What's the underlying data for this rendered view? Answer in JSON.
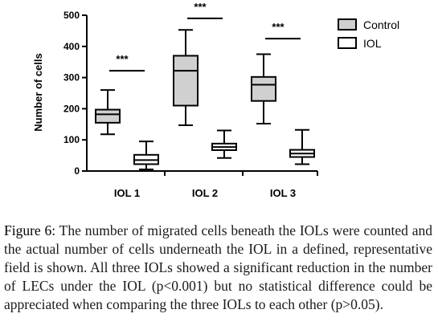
{
  "chart_data": {
    "type": "boxplot",
    "ylabel": "Number of cells",
    "ylim": [
      0,
      500
    ],
    "yticks": [
      0,
      100,
      200,
      300,
      400,
      500
    ],
    "categories": [
      "IOL 1",
      "IOL 2",
      "IOL 3"
    ],
    "series": [
      {
        "name": "Control",
        "fill": "#d0d0d0",
        "boxes": [
          {
            "min": 118,
            "q1": 155,
            "median": 182,
            "q3": 197,
            "max": 260
          },
          {
            "min": 147,
            "q1": 210,
            "median": 322,
            "q3": 370,
            "max": 453
          },
          {
            "min": 152,
            "q1": 225,
            "median": 277,
            "q3": 302,
            "max": 375
          }
        ]
      },
      {
        "name": "IOL",
        "fill": "#ffffff",
        "boxes": [
          {
            "min": 5,
            "q1": 22,
            "median": 35,
            "q3": 52,
            "max": 95
          },
          {
            "min": 42,
            "q1": 67,
            "median": 77,
            "q3": 88,
            "max": 130
          },
          {
            "min": 22,
            "q1": 45,
            "median": 56,
            "q3": 68,
            "max": 132
          }
        ]
      }
    ],
    "significance": [
      {
        "category": 0,
        "label": "***",
        "y": 322
      },
      {
        "category": 1,
        "label": "***",
        "y": 490
      },
      {
        "category": 2,
        "label": "***",
        "y": 425
      }
    ],
    "legend": {
      "position": "top-right"
    }
  },
  "caption": {
    "label": "Figure 6:",
    "text": "The number of migrated cells beneath the IOLs were counted and the actual number of cells underneath the IOL in a defined, representative field is shown. All three IOLs showed a significant reduction in the number of LECs under the IOL (p<0.001) but no statistical difference could be appreciated when comparing the three IOLs to each other (p>0.05)."
  }
}
